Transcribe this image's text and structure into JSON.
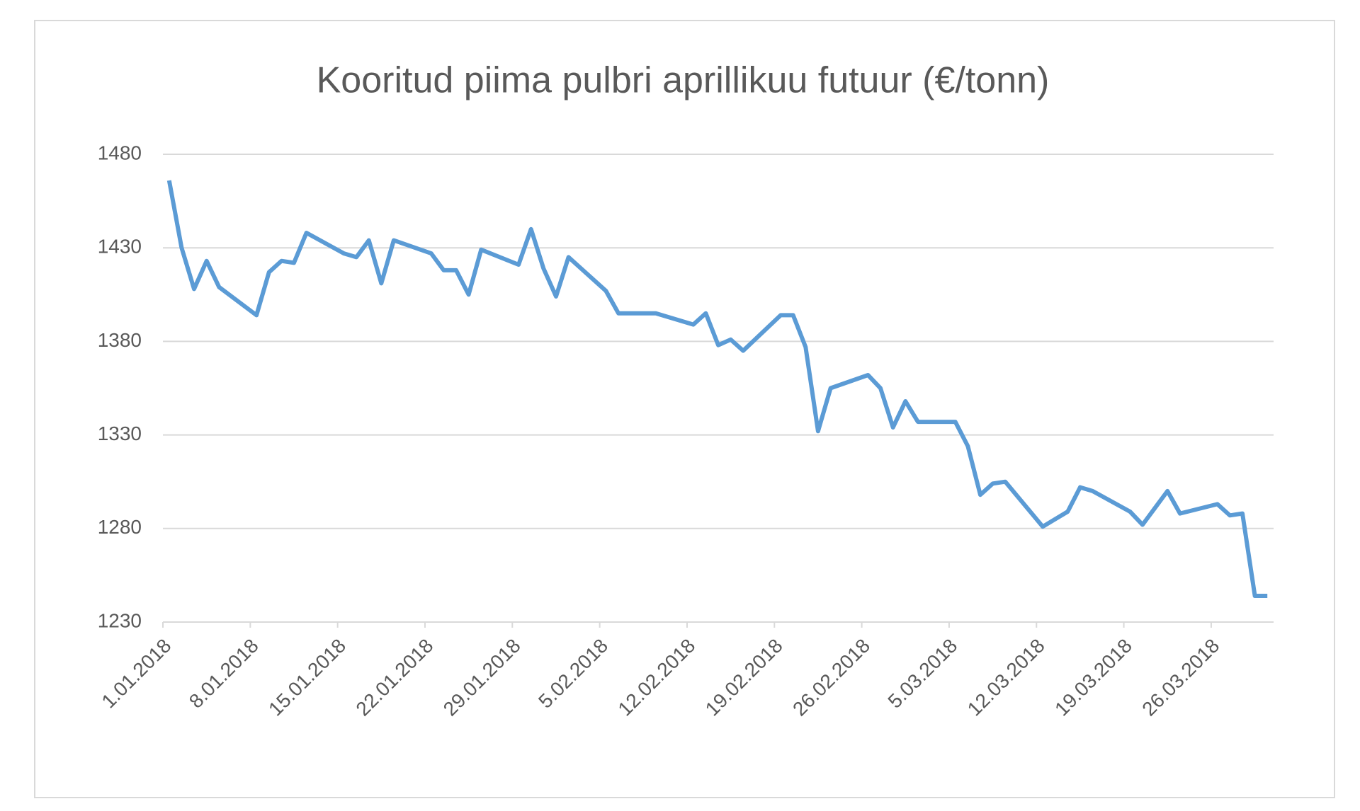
{
  "chart_data": {
    "type": "line",
    "title": "Kooritud piima pulbri aprillikuu futuur (€/tonn)",
    "x": [
      "1.01.2018",
      "2.01.2018",
      "3.01.2018",
      "4.01.2018",
      "5.01.2018",
      "8.01.2018",
      "9.01.2018",
      "10.01.2018",
      "11.01.2018",
      "12.01.2018",
      "15.01.2018",
      "16.01.2018",
      "17.01.2018",
      "18.01.2018",
      "19.01.2018",
      "22.01.2018",
      "23.01.2018",
      "24.01.2018",
      "25.01.2018",
      "26.01.2018",
      "29.01.2018",
      "30.01.2018",
      "31.01.2018",
      "1.02.2018",
      "2.02.2018",
      "5.02.2018",
      "6.02.2018",
      "7.02.2018",
      "8.02.2018",
      "9.02.2018",
      "12.02.2018",
      "13.02.2018",
      "14.02.2018",
      "15.02.2018",
      "16.02.2018",
      "19.02.2018",
      "20.02.2018",
      "21.02.2018",
      "22.02.2018",
      "23.02.2018",
      "26.02.2018",
      "27.02.2018",
      "28.02.2018",
      "1.03.2018",
      "2.03.2018",
      "5.03.2018",
      "6.03.2018",
      "7.03.2018",
      "8.03.2018",
      "9.03.2018",
      "12.03.2018",
      "13.03.2018",
      "14.03.2018",
      "15.03.2018",
      "16.03.2018",
      "19.03.2018",
      "20.03.2018",
      "21.03.2018",
      "22.03.2018",
      "23.03.2018",
      "26.03.2018",
      "27.03.2018",
      "28.03.2018",
      "29.03.2018",
      "30.03.2018"
    ],
    "series": [
      {
        "name": "Kooritud piima pulbri aprillikuu futuur",
        "color": "#5b9bd5",
        "values": [
          1466,
          1430,
          1408,
          1423,
          1409,
          1394,
          1417,
          1423,
          1422,
          1438,
          1427,
          1425,
          1434,
          1411,
          1434,
          1427,
          1418,
          1418,
          1405,
          1429,
          1421,
          1440,
          1419,
          1404,
          1425,
          1407,
          1395,
          1395,
          1395,
          1395,
          1389,
          1395,
          1378,
          1381,
          1375,
          1394,
          1394,
          1377,
          1332,
          1355,
          1362,
          1355,
          1334,
          1348,
          1337,
          1337,
          1324,
          1298,
          1304,
          1305,
          1281,
          1285,
          1289,
          1302,
          1300,
          1289,
          1282,
          1291,
          1300,
          1288,
          1293,
          1287,
          1288,
          1244,
          1244
        ]
      }
    ],
    "xlim": [
      "1.01.2018",
      "30.03.2018"
    ],
    "xticks": [
      "1.01.2018",
      "8.01.2018",
      "15.01.2018",
      "22.01.2018",
      "29.01.2018",
      "5.02.2018",
      "12.02.2018",
      "19.02.2018",
      "26.02.2018",
      "5.03.2018",
      "12.03.2018",
      "19.03.2018",
      "26.03.2018"
    ],
    "ylim": [
      1230,
      1480
    ],
    "yticks": [
      1230,
      1280,
      1330,
      1380,
      1430,
      1480
    ],
    "grid": true
  }
}
